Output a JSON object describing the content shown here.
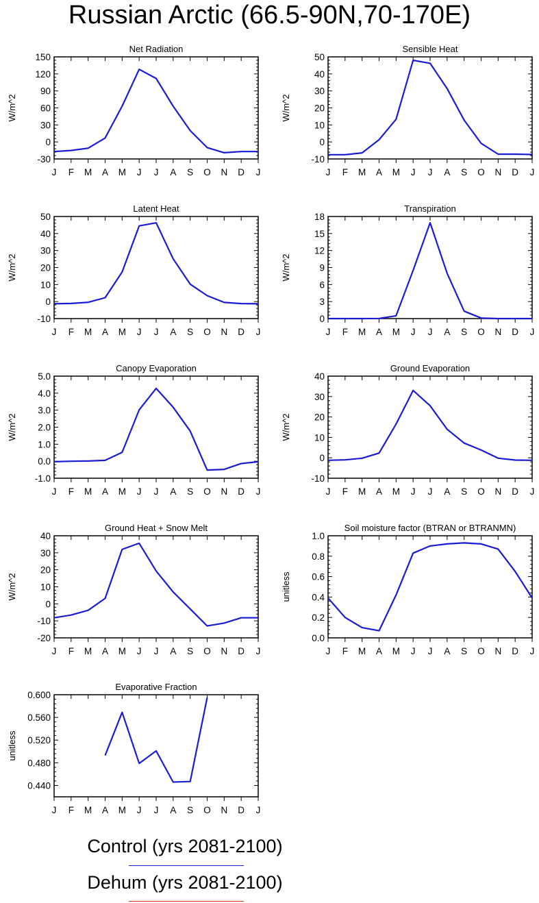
{
  "title": "Russian Arctic (66.5-90N,70-170E)",
  "legend": [
    {
      "label": "Control (yrs 2081-2100)",
      "color": "#1a1ad6"
    },
    {
      "label": "Dehum (yrs 2081-2100)",
      "color": "#e8231c"
    }
  ],
  "chart_data": [
    {
      "type": "line",
      "title": "Net Radiation",
      "ylabel": "W/m^2",
      "ylim": [
        -30,
        150
      ],
      "yticks": [
        -30,
        0,
        30,
        60,
        90,
        120,
        150
      ],
      "ytick_labels": [
        "-30",
        "0",
        "30",
        "60",
        "90",
        "120",
        "150"
      ],
      "categories": [
        "J",
        "F",
        "M",
        "A",
        "M",
        "J",
        "J",
        "A",
        "S",
        "O",
        "N",
        "D",
        "J"
      ],
      "series": [
        {
          "name": "Control (yrs 2081-2100)",
          "values": [
            -17,
            -15,
            -11,
            7,
            63,
            128,
            112,
            63,
            20,
            -10,
            -19,
            -17,
            -17
          ]
        }
      ]
    },
    {
      "type": "line",
      "title": "Sensible Heat",
      "ylabel": "W/m^2",
      "ylim": [
        -10,
        50
      ],
      "yticks": [
        -10,
        0,
        10,
        20,
        30,
        40,
        50
      ],
      "ytick_labels": [
        "-10",
        "0",
        "10",
        "20",
        "30",
        "40",
        "50"
      ],
      "categories": [
        "J",
        "F",
        "M",
        "A",
        "M",
        "J",
        "J",
        "A",
        "S",
        "O",
        "N",
        "D",
        "J"
      ],
      "series": [
        {
          "name": "Control (yrs 2081-2100)",
          "values": [
            -7.5,
            -7.5,
            -6.4,
            1.3,
            13.3,
            48,
            46.2,
            31.4,
            12.8,
            -0.8,
            -7.2,
            -7.2,
            -7.4
          ]
        }
      ]
    },
    {
      "type": "line",
      "title": "Latent Heat",
      "ylabel": "W/m^2",
      "ylim": [
        -10,
        50
      ],
      "yticks": [
        -10,
        0,
        10,
        20,
        30,
        40,
        50
      ],
      "ytick_labels": [
        "-10",
        "0",
        "10",
        "20",
        "30",
        "40",
        "50"
      ],
      "categories": [
        "J",
        "F",
        "M",
        "A",
        "M",
        "J",
        "J",
        "A",
        "S",
        "O",
        "N",
        "D",
        "J"
      ],
      "series": [
        {
          "name": "Control (yrs 2081-2100)",
          "values": [
            -1.3,
            -1.1,
            -0.4,
            2.3,
            17.4,
            44.5,
            46.3,
            25.1,
            10.2,
            3.5,
            -0.5,
            -1.2,
            -1.3
          ]
        }
      ]
    },
    {
      "type": "line",
      "title": "Transpiration",
      "ylabel": "W/m^2",
      "ylim": [
        0,
        18
      ],
      "yticks": [
        0,
        3,
        6,
        9,
        12,
        15,
        18
      ],
      "ytick_labels": [
        "0",
        "3",
        "6",
        "9",
        "12",
        "15",
        "18"
      ],
      "categories": [
        "J",
        "F",
        "M",
        "A",
        "M",
        "J",
        "J",
        "A",
        "S",
        "O",
        "N",
        "D",
        "J"
      ],
      "series": [
        {
          "name": "Control (yrs 2081-2100)",
          "values": [
            0,
            0,
            0,
            0.02,
            0.5,
            8.5,
            16.9,
            8,
            1.3,
            0.1,
            0,
            0,
            0
          ]
        }
      ]
    },
    {
      "type": "line",
      "title": "Canopy Evaporation",
      "ylabel": "W/m^2",
      "ylim": [
        -1,
        5
      ],
      "yticks": [
        -1,
        0,
        1,
        2,
        3,
        4,
        5
      ],
      "ytick_labels": [
        "-1.0",
        "0.0",
        "1.0",
        "2.0",
        "3.0",
        "4.0",
        "5.0"
      ],
      "categories": [
        "J",
        "F",
        "M",
        "A",
        "M",
        "J",
        "J",
        "A",
        "S",
        "O",
        "N",
        "D",
        "J"
      ],
      "series": [
        {
          "name": "Control (yrs 2081-2100)",
          "values": [
            -0.03,
            0,
            0.01,
            0.05,
            0.52,
            3.02,
            4.28,
            3.17,
            1.77,
            -0.52,
            -0.48,
            -0.14,
            -0.03
          ]
        }
      ]
    },
    {
      "type": "line",
      "title": "Ground Evaporation",
      "ylabel": "W/m^2",
      "ylim": [
        -10,
        40
      ],
      "yticks": [
        -10,
        0,
        10,
        20,
        30,
        40
      ],
      "ytick_labels": [
        "-10",
        "0",
        "10",
        "20",
        "30",
        "40"
      ],
      "categories": [
        "J",
        "F",
        "M",
        "A",
        "M",
        "J",
        "J",
        "A",
        "S",
        "O",
        "N",
        "D",
        "J"
      ],
      "series": [
        {
          "name": "Control (yrs 2081-2100)",
          "values": [
            -1.2,
            -1,
            -0.2,
            2.3,
            16.5,
            33,
            25.5,
            14,
            7.2,
            3.8,
            -0.2,
            -1.1,
            -1.2
          ]
        }
      ]
    },
    {
      "type": "line",
      "title": "Ground Heat + Snow Melt",
      "ylabel": "W/m^2",
      "ylim": [
        -20,
        40
      ],
      "yticks": [
        -20,
        -10,
        0,
        10,
        20,
        30,
        40
      ],
      "ytick_labels": [
        "-20",
        "-10",
        "0",
        "10",
        "20",
        "30",
        "40"
      ],
      "categories": [
        "J",
        "F",
        "M",
        "A",
        "M",
        "J",
        "J",
        "A",
        "S",
        "O",
        "N",
        "D",
        "J"
      ],
      "series": [
        {
          "name": "Control (yrs 2081-2100)",
          "values": [
            -8.2,
            -6.6,
            -3.8,
            3.2,
            32,
            35.6,
            19.3,
            7,
            -3,
            -13,
            -11.3,
            -8.2,
            -8.2
          ]
        }
      ]
    },
    {
      "type": "line",
      "title": "Soil moisture factor (BTRAN or BTRANMN)",
      "ylabel": "unitless",
      "ylim": [
        0,
        1
      ],
      "yticks": [
        0,
        0.2,
        0.4,
        0.6,
        0.8,
        1.0
      ],
      "ytick_labels": [
        "0.0",
        "0.2",
        "0.4",
        "0.6",
        "0.8",
        "1.0"
      ],
      "categories": [
        "J",
        "F",
        "M",
        "A",
        "M",
        "J",
        "J",
        "A",
        "S",
        "O",
        "N",
        "D",
        "J"
      ],
      "series": [
        {
          "name": "Control (yrs 2081-2100)",
          "values": [
            0.39,
            0.2,
            0.1,
            0.07,
            0.42,
            0.83,
            0.9,
            0.92,
            0.93,
            0.92,
            0.87,
            0.65,
            0.39
          ]
        }
      ]
    },
    {
      "type": "line",
      "title": "Evaporative Fraction",
      "ylabel": "unitless",
      "ylim": [
        0.42,
        0.6
      ],
      "yticks": [
        0.44,
        0.48,
        0.52,
        0.56,
        0.6
      ],
      "ytick_labels": [
        "0.440",
        "0.480",
        "0.520",
        "0.560",
        "0.600"
      ],
      "categories": [
        "J",
        "F",
        "M",
        "A",
        "M",
        "J",
        "J",
        "A",
        "S",
        "O",
        "N",
        "D",
        "J"
      ],
      "series": [
        {
          "name": "Control (yrs 2081-2100)",
          "values": [
            null,
            null,
            null,
            0.493,
            0.569,
            0.479,
            0.501,
            0.446,
            0.447,
            0.595,
            null,
            null,
            null
          ]
        }
      ]
    }
  ]
}
